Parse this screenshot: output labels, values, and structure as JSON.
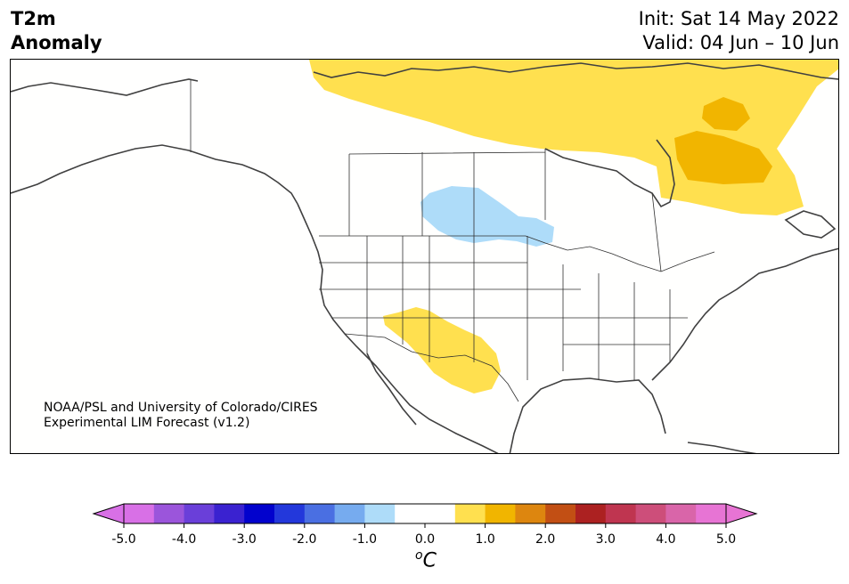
{
  "title": {
    "line1": "T2m",
    "line2": "Anomaly"
  },
  "dates": {
    "init": "Init: Sat 14 May 2022",
    "valid": "Valid: 04 Jun – 10 Jun"
  },
  "credit": {
    "line1": "NOAA/PSL and University of Colorado/CIRES",
    "line2": "Experimental LIM Forecast (v1.2)"
  },
  "colorbar": {
    "unit_base": "C",
    "unit_sup": "o",
    "ticks": [
      "-5.0",
      "-4.0",
      "-3.0",
      "-2.0",
      "-1.0",
      "0.0",
      "1.0",
      "2.0",
      "3.0",
      "4.0",
      "5.0"
    ],
    "colors": [
      "#d870e6",
      "#9b55db",
      "#6a3fd9",
      "#3a22d0",
      "#0202cd",
      "#2338db",
      "#4a6fe2",
      "#76abef",
      "#aedcf9",
      "#ffffff",
      "#ffffff",
      "#ffe04f",
      "#f1b500",
      "#dd860f",
      "#c24f14",
      "#ac2121",
      "#bf3550",
      "#cd4e7a",
      "#d965a9",
      "#e774d4"
    ],
    "under_color": "#d870e6",
    "over_color": "#e774d4"
  },
  "map_colors": {
    "warm_light": "#ffe04f",
    "warm_medium": "#f1b500",
    "cool_light": "#aedcf9",
    "coast": "#404040",
    "borders": "#303030"
  }
}
